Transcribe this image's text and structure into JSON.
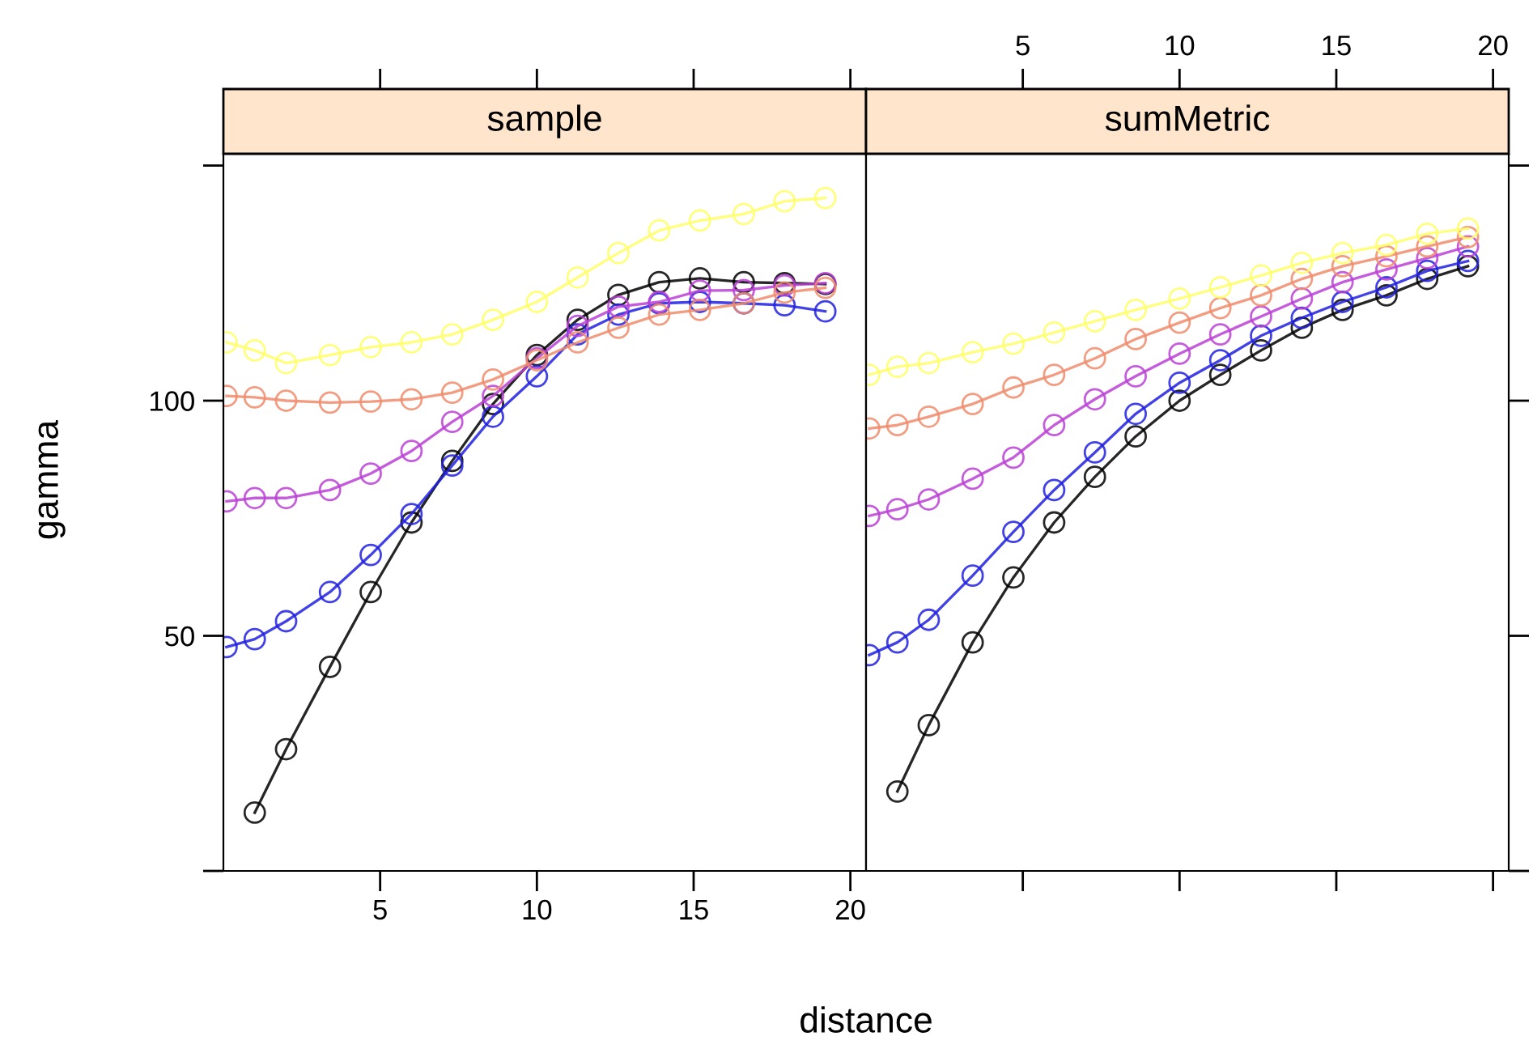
{
  "chart_data": [
    {
      "type": "line",
      "title": "sample",
      "xlabel": "distance",
      "ylabel": "gamma",
      "marker": "circle",
      "line_style": "solid",
      "grid": false,
      "legend": false,
      "xlim": [
        0,
        20.5
      ],
      "ylim": [
        0,
        152.5
      ],
      "xticks": [
        5,
        10,
        15,
        20
      ],
      "yticks": [
        {
          "value": 0,
          "label": null
        },
        50,
        100,
        {
          "value": 150,
          "label": null
        }
      ],
      "series": [
        {
          "color": "#000000",
          "x": [
            1.0,
            2.0,
            3.4,
            4.7,
            6.0,
            7.3,
            8.6,
            10.0,
            11.3,
            12.6,
            13.9,
            15.2,
            16.6,
            17.9,
            19.2
          ],
          "values": [
            12.4,
            25.9,
            43.4,
            59.3,
            74.1,
            87.2,
            99.3,
            109.7,
            117.2,
            122.5,
            125.2,
            126,
            125.2,
            125,
            124.8
          ]
        },
        {
          "color": "#2020e0",
          "x": [
            0.1,
            1.0,
            2.0,
            3.4,
            4.7,
            6.0,
            7.3,
            8.6,
            10.0,
            11.3,
            12.6,
            13.9,
            15.2,
            16.6,
            17.9,
            19.2
          ],
          "values": [
            47.6,
            49.3,
            53.1,
            59.3,
            67.2,
            75.9,
            86.2,
            96.6,
            105.2,
            114.1,
            118.3,
            120.7,
            121,
            120.7,
            120.3,
            119
          ]
        },
        {
          "color": "#bb3fd6",
          "x": [
            0.1,
            1.0,
            2.0,
            3.4,
            4.7,
            6.0,
            7.3,
            8.6,
            10.0,
            11.3,
            12.6,
            13.9,
            15.2,
            16.6,
            17.9,
            19.2
          ],
          "values": [
            78.6,
            79.3,
            79.3,
            81.0,
            84.5,
            89.3,
            95.5,
            101,
            109,
            115.9,
            120,
            121,
            123.4,
            123.5,
            124.5,
            125
          ]
        },
        {
          "color": "#f08c6c",
          "x": [
            0.1,
            1.0,
            2.0,
            3.4,
            4.7,
            6.0,
            7.3,
            8.6,
            10.0,
            11.3,
            12.6,
            13.9,
            15.2,
            16.6,
            17.9,
            19.2
          ],
          "values": [
            101,
            100.7,
            100,
            99.6,
            99.8,
            100.3,
            101.7,
            104.5,
            108.6,
            112.4,
            115.5,
            118.3,
            119.3,
            120.7,
            123,
            124
          ]
        },
        {
          "color": "#ffff66",
          "x": [
            0.1,
            1.0,
            2.0,
            3.4,
            4.7,
            6.0,
            7.3,
            8.6,
            10.0,
            11.3,
            12.6,
            13.9,
            15.2,
            16.6,
            17.9,
            19.2
          ],
          "values": [
            112.4,
            110.7,
            108,
            109.7,
            111.4,
            112.4,
            114.1,
            117.2,
            121,
            126.2,
            131.4,
            136.2,
            138.3,
            139.7,
            142.4,
            143.1
          ]
        }
      ]
    },
    {
      "type": "line",
      "title": "sumMetric",
      "marker": "circle",
      "line_style": "solid",
      "grid": false,
      "legend": false,
      "tick_labels": "x",
      "xlim": [
        0,
        20.5
      ],
      "x2lim": [
        0,
        20.5
      ],
      "ylim": [
        0,
        152.5
      ],
      "x2ticks": [
        5,
        10,
        15,
        20
      ],
      "yticks": [
        0,
        50,
        100,
        150
      ],
      "series": [
        {
          "color": "#000000",
          "x": [
            1.0,
            2.0,
            3.4,
            4.7,
            6.0,
            7.3,
            8.6,
            10.0,
            11.3,
            12.6,
            13.9,
            15.2,
            16.6,
            17.9,
            19.2
          ],
          "values": [
            16.9,
            31,
            48.6,
            62.4,
            74.1,
            83.8,
            92.4,
            100,
            105.5,
            110.7,
            115.5,
            119.3,
            122.4,
            125.9,
            128.6
          ]
        },
        {
          "color": "#2020e0",
          "x": [
            0.1,
            1.0,
            2.0,
            3.4,
            4.7,
            6.0,
            7.3,
            8.6,
            10.0,
            11.3,
            12.6,
            13.9,
            15.2,
            16.6,
            17.9,
            19.2
          ],
          "values": [
            45.9,
            48.6,
            53.4,
            62.8,
            72.1,
            81,
            89,
            97.2,
            103.8,
            108.6,
            113.8,
            117.6,
            121,
            124.1,
            127.6,
            129.7
          ]
        },
        {
          "color": "#bb3fd6",
          "x": [
            0.1,
            1.0,
            2.0,
            3.4,
            4.7,
            6.0,
            7.3,
            8.6,
            10.0,
            11.3,
            12.6,
            13.9,
            15.2,
            16.6,
            17.9,
            19.2
          ],
          "values": [
            75.5,
            76.9,
            79,
            83.4,
            87.9,
            94.8,
            100.3,
            105.2,
            110,
            114.1,
            117.9,
            121.7,
            125.2,
            127.9,
            130.3,
            132.8
          ]
        },
        {
          "color": "#f08c6c",
          "x": [
            0.1,
            1.0,
            2.0,
            3.4,
            4.7,
            6.0,
            7.3,
            8.6,
            10.0,
            11.3,
            12.6,
            13.9,
            15.2,
            16.6,
            17.9,
            19.2
          ],
          "values": [
            94.1,
            94.8,
            96.6,
            99.3,
            102.8,
            105.5,
            109,
            113.1,
            116.6,
            119.7,
            122.4,
            125.9,
            128.6,
            130.7,
            132.8,
            134.8
          ]
        },
        {
          "color": "#ffff66",
          "x": [
            0.1,
            1.0,
            2.0,
            3.4,
            4.7,
            6.0,
            7.3,
            8.6,
            10.0,
            11.3,
            12.6,
            13.9,
            15.2,
            16.6,
            17.9,
            19.2
          ],
          "values": [
            105.5,
            107.2,
            108,
            110.3,
            112.1,
            114.5,
            116.9,
            119.3,
            121.7,
            124.1,
            126.6,
            129.3,
            131.4,
            133.1,
            135.5,
            136.6
          ]
        }
      ]
    }
  ]
}
